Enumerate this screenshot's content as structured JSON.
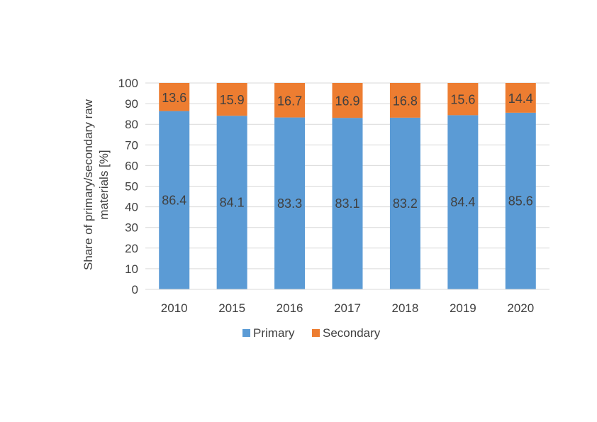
{
  "chart_data": {
    "type": "bar",
    "stacked": true,
    "title": "",
    "xlabel": "",
    "ylabel": "Share of primary/secondary raw materials  [%]",
    "ylabel_lines": [
      "Share of primary/secondary raw",
      "materials  [%]"
    ],
    "ylim": [
      0,
      100
    ],
    "yticks": [
      0,
      10,
      20,
      30,
      40,
      50,
      60,
      70,
      80,
      90,
      100
    ],
    "categories": [
      "2010",
      "2015",
      "2016",
      "2017",
      "2018",
      "2019",
      "2020"
    ],
    "series": [
      {
        "name": "Primary",
        "color": "#5b9bd5",
        "values": [
          86.4,
          84.1,
          83.3,
          83.1,
          83.2,
          84.4,
          85.6
        ]
      },
      {
        "name": "Secondary",
        "color": "#ed7d31",
        "values": [
          13.6,
          15.9,
          16.7,
          16.9,
          16.8,
          15.6,
          14.4
        ]
      }
    ],
    "grid": true,
    "legend": "bottom",
    "gridColor": "#d9d9d9"
  }
}
